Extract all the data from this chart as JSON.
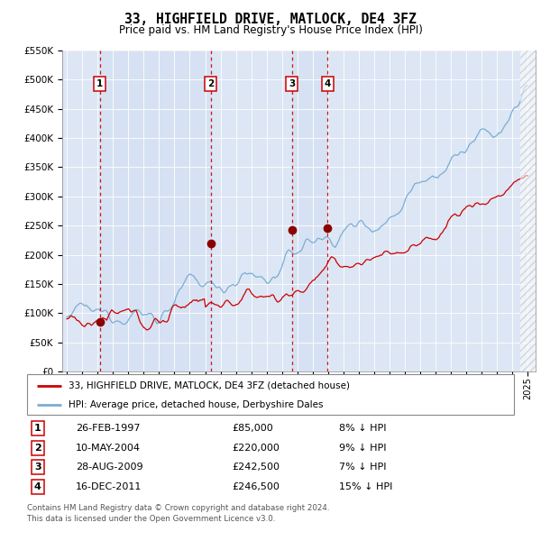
{
  "title": "33, HIGHFIELD DRIVE, MATLOCK, DE4 3FZ",
  "subtitle": "Price paid vs. HM Land Registry's House Price Index (HPI)",
  "ylabel_max": 550000,
  "yticks": [
    0,
    50000,
    100000,
    150000,
    200000,
    250000,
    300000,
    350000,
    400000,
    450000,
    500000,
    550000
  ],
  "x_start_year": 1995,
  "x_end_year": 2025,
  "sale_dates": [
    1997.15,
    2004.36,
    2009.65,
    2011.96
  ],
  "sale_prices": [
    85000,
    220000,
    242500,
    246500
  ],
  "sale_labels": [
    "1",
    "2",
    "3",
    "4"
  ],
  "sale_hpi_pct": [
    "8% ↓ HPI",
    "9% ↓ HPI",
    "7% ↓ HPI",
    "15% ↓ HPI"
  ],
  "sale_dates_str": [
    "26-FEB-1997",
    "10-MAY-2004",
    "28-AUG-2009",
    "16-DEC-2011"
  ],
  "sale_prices_str": [
    "£85,000",
    "£220,000",
    "£242,500",
    "£246,500"
  ],
  "hpi_color": "#7badd4",
  "price_color": "#cc0000",
  "dashed_color": "#cc0000",
  "background_color": "#ffffff",
  "chart_bg_color": "#dce6f4",
  "legend_label_price": "33, HIGHFIELD DRIVE, MATLOCK, DE4 3FZ (detached house)",
  "legend_label_hpi": "HPI: Average price, detached house, Derbyshire Dales",
  "footnote": "Contains HM Land Registry data © Crown copyright and database right 2024.\nThis data is licensed under the Open Government Licence v3.0."
}
